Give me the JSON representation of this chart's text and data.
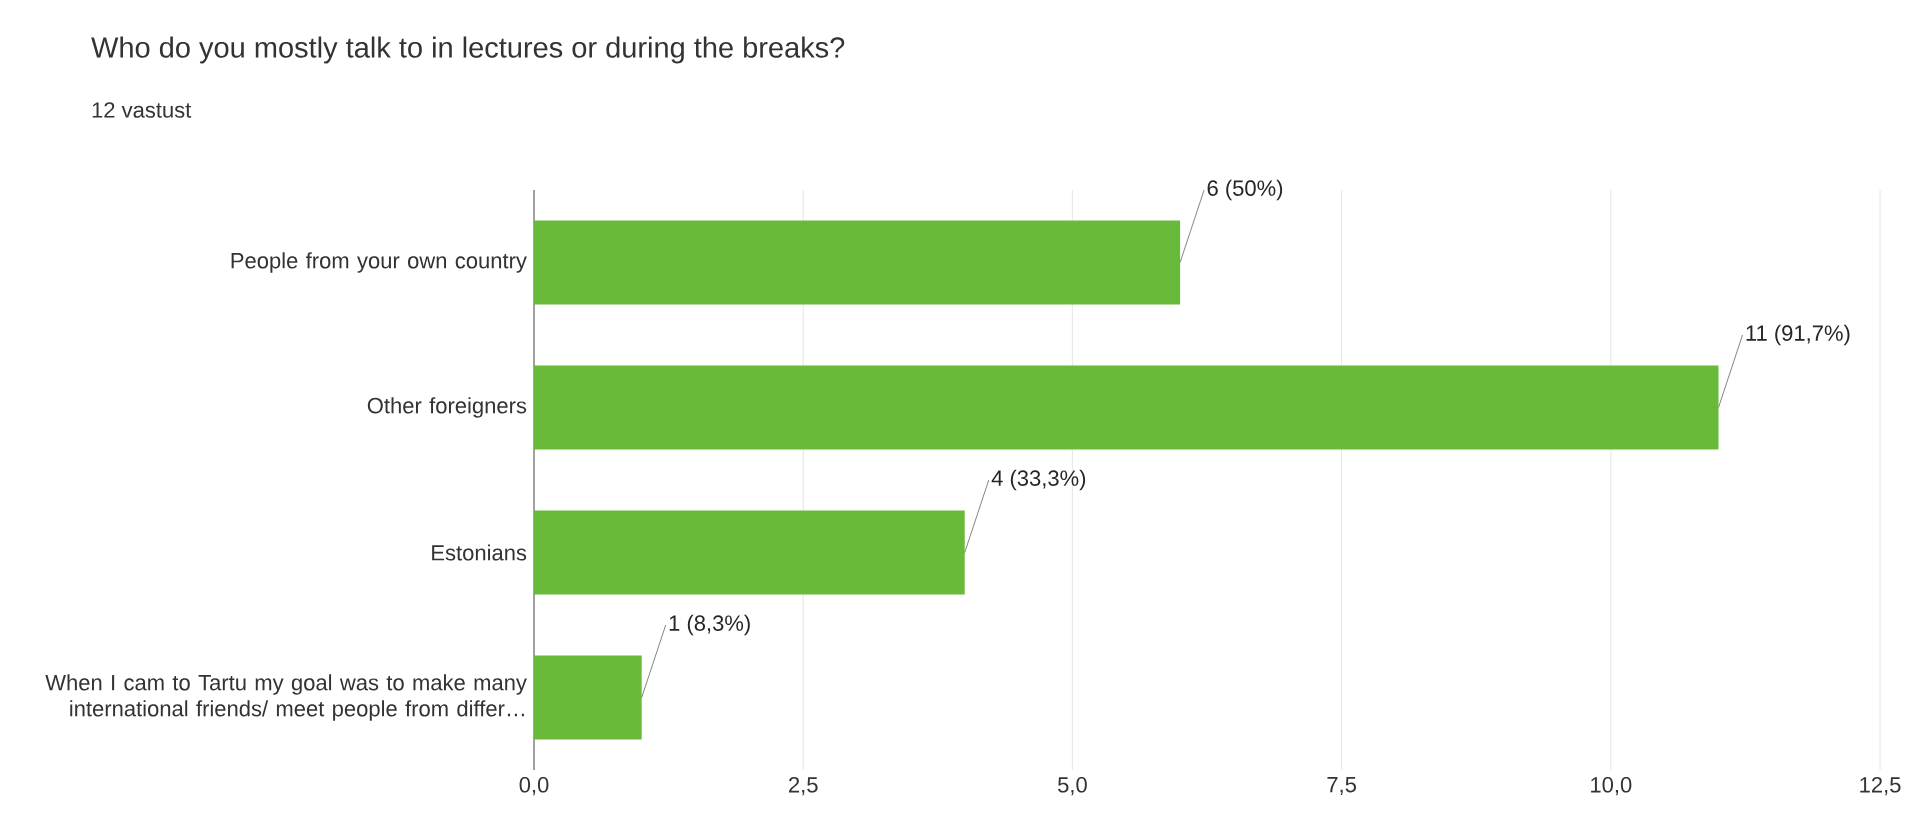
{
  "chart_data": {
    "type": "bar",
    "orientation": "horizontal",
    "title": "Who do you mostly talk to in lectures or during the breaks?",
    "subtitle": "12 vastust",
    "categories": [
      "People from your own country",
      "Other foreigners",
      "Estonians",
      "When I cam to Tartu my goal was to make many international friends/ meet people from differ…"
    ],
    "values": [
      6,
      11,
      4,
      1
    ],
    "value_labels": [
      "6 (50%)",
      "11 (91,7%)",
      "4 (33,3%)",
      "1 (8,3%)"
    ],
    "color": "#6aba3a",
    "xlim": [
      0,
      12.5
    ],
    "xticks": [
      {
        "value": 0,
        "label": "0,0"
      },
      {
        "value": 2.5,
        "label": "2,5"
      },
      {
        "value": 5,
        "label": "5,0"
      },
      {
        "value": 7.5,
        "label": "7,5"
      },
      {
        "value": 10,
        "label": "10,0"
      },
      {
        "value": 12.5,
        "label": "12,5"
      }
    ],
    "grid": "x"
  }
}
